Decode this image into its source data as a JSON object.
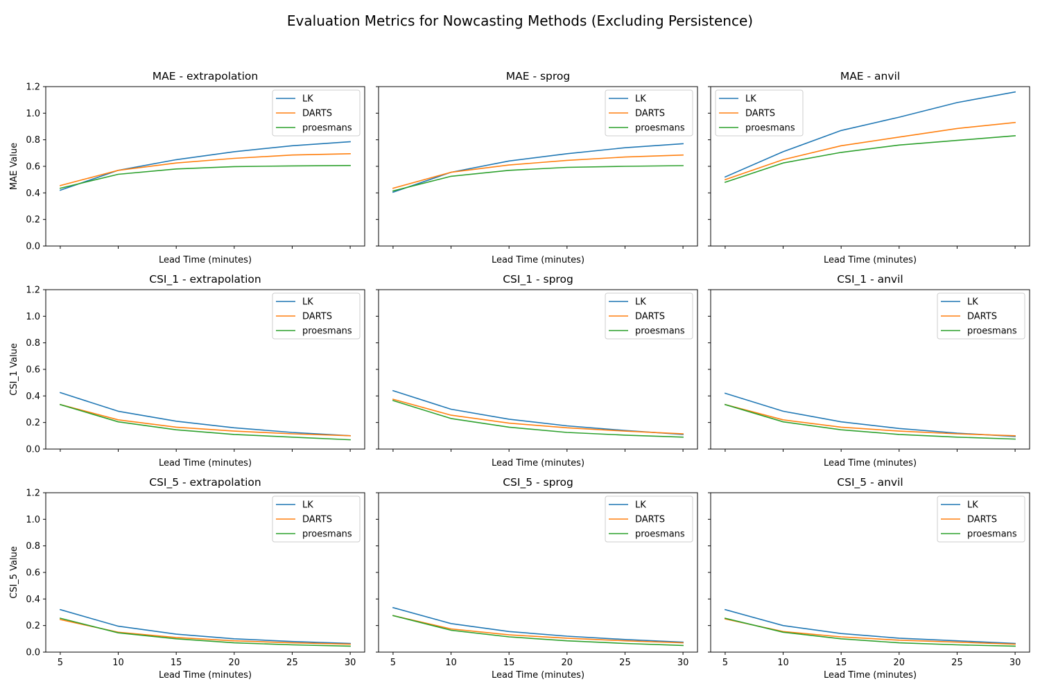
{
  "figure": {
    "suptitle": "Evaluation Metrics for Nowcasting Methods (Excluding Persistence)"
  },
  "chart_data": {
    "type": "line",
    "title": "Evaluation Metrics for Nowcasting Methods (Excluding Persistence)",
    "x": [
      5,
      10,
      15,
      20,
      25,
      30
    ],
    "xlabel": "Lead Time (minutes)",
    "ylim": [
      0,
      1.2
    ],
    "yticks": [
      0.0,
      0.2,
      0.4,
      0.6,
      0.8,
      1.0,
      1.2
    ],
    "ytick_labels": [
      "0.0",
      "0.2",
      "0.4",
      "0.6",
      "0.8",
      "1.0",
      "1.2"
    ],
    "xticks": [
      5,
      10,
      15,
      20,
      25,
      30
    ],
    "xtick_labels": [
      "5",
      "10",
      "15",
      "20",
      "25",
      "30"
    ],
    "series_colors": {
      "LK": "#1f77b4",
      "DARTS": "#ff7f0e",
      "proesmans": "#2ca02c"
    },
    "grid": false,
    "rows": [
      {
        "metric": "MAE",
        "ylabel": "MAE Value"
      },
      {
        "metric": "CSI_1",
        "ylabel": "CSI_1 Value"
      },
      {
        "metric": "CSI_5",
        "ylabel": "CSI_5 Value"
      }
    ],
    "panels": [
      {
        "title": "MAE - extrapolation",
        "legend": "upper-right",
        "series": [
          {
            "name": "LK",
            "values": [
              0.42,
              0.57,
              0.65,
              0.71,
              0.755,
              0.785
            ]
          },
          {
            "name": "DARTS",
            "values": [
              0.455,
              0.57,
              0.625,
              0.66,
              0.685,
              0.695
            ]
          },
          {
            "name": "proesmans",
            "values": [
              0.435,
              0.54,
              0.58,
              0.598,
              0.603,
              0.606
            ]
          }
        ]
      },
      {
        "title": "MAE - sprog",
        "legend": "upper-right",
        "series": [
          {
            "name": "LK",
            "values": [
              0.405,
              0.555,
              0.64,
              0.695,
              0.74,
              0.77
            ]
          },
          {
            "name": "DARTS",
            "values": [
              0.435,
              0.555,
              0.61,
              0.645,
              0.67,
              0.685
            ]
          },
          {
            "name": "proesmans",
            "values": [
              0.415,
              0.525,
              0.57,
              0.592,
              0.6,
              0.605
            ]
          }
        ]
      },
      {
        "title": "MAE - anvil",
        "legend": "upper-left",
        "series": [
          {
            "name": "LK",
            "values": [
              0.52,
              0.71,
              0.87,
              0.97,
              1.08,
              1.16
            ]
          },
          {
            "name": "DARTS",
            "values": [
              0.5,
              0.65,
              0.755,
              0.82,
              0.885,
              0.93
            ]
          },
          {
            "name": "proesmans",
            "values": [
              0.48,
              0.625,
              0.705,
              0.76,
              0.795,
              0.83
            ]
          }
        ]
      },
      {
        "title": "CSI_1 - extrapolation",
        "legend": "upper-right",
        "series": [
          {
            "name": "LK",
            "values": [
              0.425,
              0.285,
              0.21,
              0.16,
              0.125,
              0.1
            ]
          },
          {
            "name": "DARTS",
            "values": [
              0.335,
              0.22,
              0.165,
              0.135,
              0.115,
              0.1
            ]
          },
          {
            "name": "proesmans",
            "values": [
              0.335,
              0.205,
              0.145,
              0.11,
              0.09,
              0.07
            ]
          }
        ]
      },
      {
        "title": "CSI_1 - sprog",
        "legend": "upper-right",
        "series": [
          {
            "name": "LK",
            "values": [
              0.44,
              0.3,
              0.225,
              0.175,
              0.14,
              0.11
            ]
          },
          {
            "name": "DARTS",
            "values": [
              0.375,
              0.255,
              0.195,
              0.16,
              0.135,
              0.115
            ]
          },
          {
            "name": "proesmans",
            "values": [
              0.365,
              0.23,
              0.165,
              0.125,
              0.105,
              0.09
            ]
          }
        ]
      },
      {
        "title": "CSI_1 - anvil",
        "legend": "upper-right",
        "series": [
          {
            "name": "LK",
            "values": [
              0.42,
              0.285,
              0.205,
              0.155,
              0.12,
              0.095
            ]
          },
          {
            "name": "DARTS",
            "values": [
              0.335,
              0.22,
              0.165,
              0.135,
              0.115,
              0.1
            ]
          },
          {
            "name": "proesmans",
            "values": [
              0.335,
              0.205,
              0.145,
              0.11,
              0.09,
              0.075
            ]
          }
        ]
      },
      {
        "title": "CSI_5 - extrapolation",
        "legend": "upper-right",
        "series": [
          {
            "name": "LK",
            "values": [
              0.32,
              0.195,
              0.135,
              0.1,
              0.08,
              0.065
            ]
          },
          {
            "name": "DARTS",
            "values": [
              0.245,
              0.15,
              0.11,
              0.085,
              0.07,
              0.06
            ]
          },
          {
            "name": "proesmans",
            "values": [
              0.255,
              0.145,
              0.1,
              0.07,
              0.055,
              0.045
            ]
          }
        ]
      },
      {
        "title": "CSI_5 - sprog",
        "legend": "upper-right",
        "series": [
          {
            "name": "LK",
            "values": [
              0.335,
              0.215,
              0.155,
              0.12,
              0.095,
              0.075
            ]
          },
          {
            "name": "DARTS",
            "values": [
              0.275,
              0.175,
              0.13,
              0.105,
              0.085,
              0.07
            ]
          },
          {
            "name": "proesmans",
            "values": [
              0.275,
              0.165,
              0.115,
              0.085,
              0.065,
              0.05
            ]
          }
        ]
      },
      {
        "title": "CSI_5 - anvil",
        "legend": "upper-right",
        "series": [
          {
            "name": "LK",
            "values": [
              0.32,
              0.2,
              0.14,
              0.105,
              0.085,
              0.065
            ]
          },
          {
            "name": "DARTS",
            "values": [
              0.25,
              0.155,
              0.115,
              0.09,
              0.075,
              0.06
            ]
          },
          {
            "name": "proesmans",
            "values": [
              0.255,
              0.15,
              0.1,
              0.07,
              0.055,
              0.045
            ]
          }
        ]
      }
    ]
  }
}
